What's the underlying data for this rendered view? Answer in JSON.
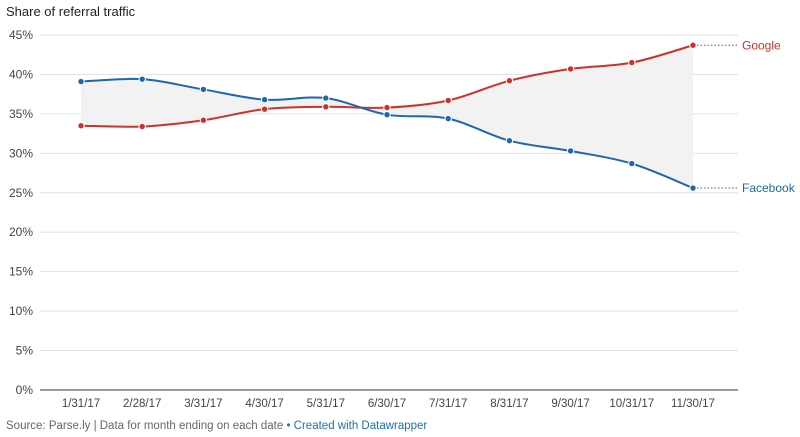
{
  "title": "Share of referral traffic",
  "footer": {
    "source_text": "Source: Parse.ly | Data for month ending on each date",
    "separator": " • ",
    "credit_link": "Created with Datawrapper"
  },
  "colors": {
    "google": "#cc3229",
    "facebook": "#1d67ad",
    "gap_fill": "#f2f2f2",
    "grid": "#e3e3e3",
    "axis": "#333333"
  },
  "chart_data": {
    "type": "line",
    "title": "Share of referral traffic",
    "xlabel": "",
    "ylabel": "",
    "categories": [
      "1/31/17",
      "2/28/17",
      "3/31/17",
      "4/30/17",
      "5/31/17",
      "6/30/17",
      "7/31/17",
      "8/31/17",
      "9/30/17",
      "10/31/17",
      "11/30/17"
    ],
    "ylim": [
      0,
      45
    ],
    "yticks": [
      0,
      5,
      10,
      15,
      20,
      25,
      30,
      35,
      40,
      45
    ],
    "ytick_labels": [
      "0%",
      "5%",
      "10%",
      "15%",
      "20%",
      "25%",
      "30%",
      "35%",
      "40%",
      "45%"
    ],
    "grid": true,
    "area_between_series": true,
    "series": [
      {
        "name": "Google",
        "values": [
          33.5,
          33.4,
          34.2,
          35.6,
          35.9,
          35.8,
          36.7,
          39.2,
          40.7,
          41.5,
          43.7
        ]
      },
      {
        "name": "Facebook",
        "values": [
          39.1,
          39.4,
          38.1,
          36.8,
          37.0,
          34.9,
          34.4,
          31.6,
          30.3,
          28.7,
          25.6
        ]
      }
    ]
  }
}
